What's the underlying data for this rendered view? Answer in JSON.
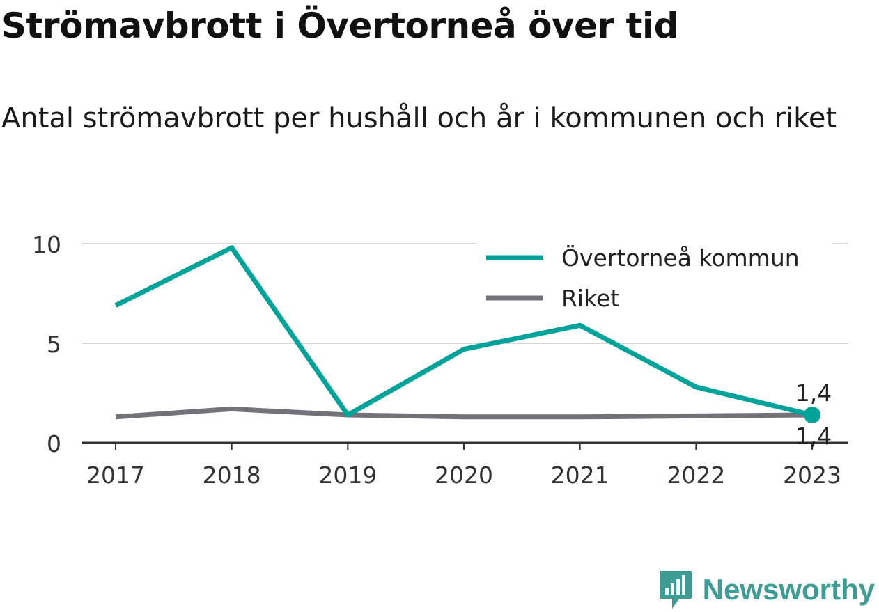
{
  "header": {
    "title": "Strömavbrott i Övertorneå över tid",
    "subtitle": "Antal strömavbrott per hushåll och år i kommunen och riket"
  },
  "brand": {
    "name": "Newsworthy",
    "icon": "bar-chart-speech-bubble-icon",
    "color": "#3d9c93"
  },
  "chart_data": {
    "type": "line",
    "title": "Strömavbrott i Övertorneå över tid",
    "subtitle": "Antal strömavbrott per hushåll och år i kommunen och riket",
    "categories": [
      "2017",
      "2018",
      "2019",
      "2020",
      "2021",
      "2022",
      "2023"
    ],
    "ylim": [
      0,
      10
    ],
    "yticks": [
      "0",
      "5",
      "10"
    ],
    "grid": true,
    "legend_position": "top-right",
    "series": [
      {
        "name": "Övertorneå kommun",
        "color": "#00a39a",
        "values": [
          6.9,
          9.8,
          1.4,
          4.7,
          5.9,
          2.8,
          1.4
        ],
        "end_label": "1,4"
      },
      {
        "name": "Riket",
        "color": "#737278",
        "values": [
          1.3,
          1.7,
          1.4,
          1.3,
          1.3,
          1.35,
          1.4
        ],
        "end_label": "1,4"
      }
    ]
  }
}
